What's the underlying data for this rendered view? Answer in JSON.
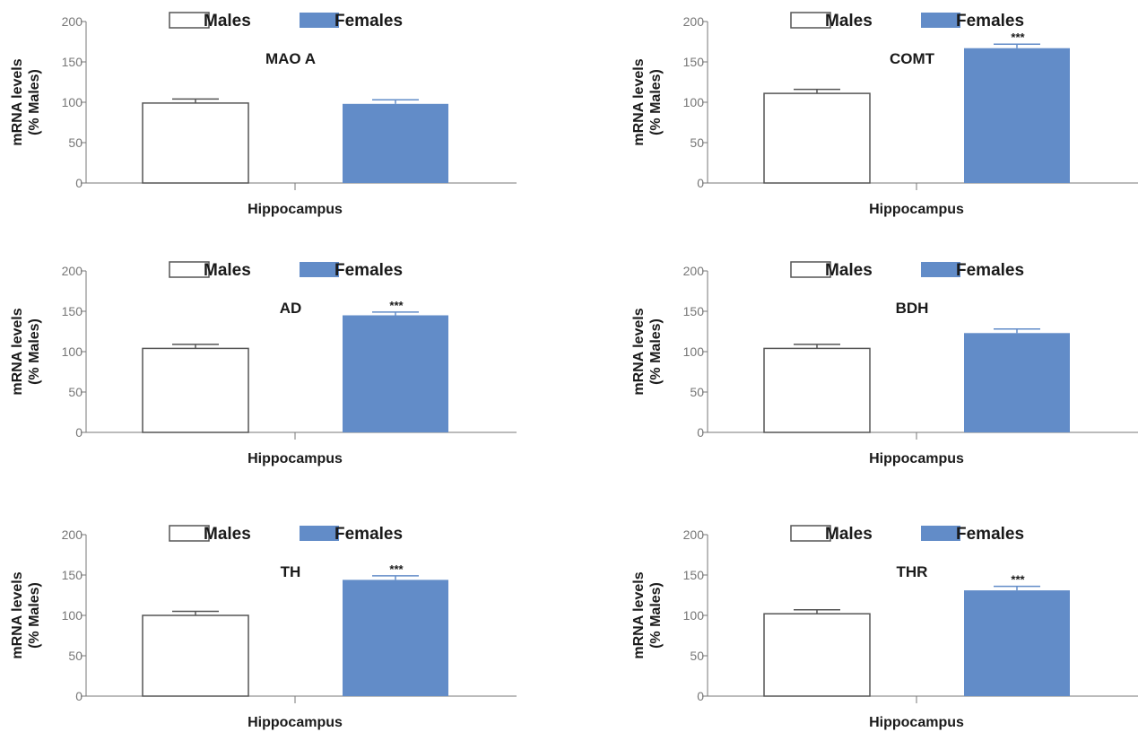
{
  "colors": {
    "males_fill": "#ffffff",
    "males_stroke": "#555555",
    "females_fill": "#628cc8",
    "axis": "#777777",
    "text": "#1a1a1a"
  },
  "chart_data": [
    {
      "type": "bar",
      "title": "MAO A",
      "legend": [
        "Males",
        "Females"
      ],
      "legend_placement": "top",
      "categories": [
        "Hippocampus"
      ],
      "xlabel": "Hippocampus",
      "ylabel": "mRNA levels\n(% Males)",
      "ylim": [
        0,
        200
      ],
      "yticks": [
        0,
        50,
        100,
        150,
        200
      ],
      "grid": false,
      "series": [
        {
          "name": "Males",
          "values": [
            99
          ],
          "error": [
            5
          ],
          "significance": ""
        },
        {
          "name": "Females",
          "values": [
            98
          ],
          "error": [
            5
          ],
          "significance": ""
        }
      ]
    },
    {
      "type": "bar",
      "title": "COMT",
      "legend": [
        "Males",
        "Females"
      ],
      "legend_placement": "top",
      "categories": [
        "Hippocampus"
      ],
      "xlabel": "Hippocampus",
      "ylabel": "mRNA levels\n(% Males)",
      "ylim": [
        0,
        200
      ],
      "yticks": [
        0,
        50,
        100,
        150,
        200
      ],
      "grid": false,
      "series": [
        {
          "name": "Males",
          "values": [
            111
          ],
          "error": [
            5
          ],
          "significance": ""
        },
        {
          "name": "Females",
          "values": [
            167
          ],
          "error": [
            5
          ],
          "significance": "***"
        }
      ]
    },
    {
      "type": "bar",
      "title": "AD",
      "legend": [
        "Males",
        "Females"
      ],
      "legend_placement": "top",
      "categories": [
        "Hippocampus"
      ],
      "xlabel": "Hippocampus",
      "ylabel": "mRNA levels\n(% Males)",
      "ylim": [
        0,
        200
      ],
      "yticks": [
        0,
        50,
        100,
        150,
        200
      ],
      "grid": false,
      "series": [
        {
          "name": "Males",
          "values": [
            104
          ],
          "error": [
            5
          ],
          "significance": ""
        },
        {
          "name": "Females",
          "values": [
            145
          ],
          "error": [
            4
          ],
          "significance": "***"
        }
      ]
    },
    {
      "type": "bar",
      "title": "BDH",
      "legend": [
        "Males",
        "Females"
      ],
      "legend_placement": "top",
      "categories": [
        "Hippocampus"
      ],
      "xlabel": "Hippocampus",
      "ylabel": "mRNA levels\n(% Males)",
      "ylim": [
        0,
        200
      ],
      "yticks": [
        0,
        50,
        100,
        150,
        200
      ],
      "grid": false,
      "series": [
        {
          "name": "Males",
          "values": [
            104
          ],
          "error": [
            5
          ],
          "significance": ""
        },
        {
          "name": "Females",
          "values": [
            123
          ],
          "error": [
            5
          ],
          "significance": ""
        }
      ]
    },
    {
      "type": "bar",
      "title": "TH",
      "legend": [
        "Males",
        "Females"
      ],
      "legend_placement": "top",
      "categories": [
        "Hippocampus"
      ],
      "xlabel": "Hippocampus",
      "ylabel": "mRNA levels\n(% Males)",
      "ylim": [
        0,
        200
      ],
      "yticks": [
        0,
        50,
        100,
        150,
        200
      ],
      "grid": false,
      "series": [
        {
          "name": "Males",
          "values": [
            100
          ],
          "error": [
            5
          ],
          "significance": ""
        },
        {
          "name": "Females",
          "values": [
            144
          ],
          "error": [
            5
          ],
          "significance": "***"
        }
      ]
    },
    {
      "type": "bar",
      "title": "THR",
      "legend": [
        "Males",
        "Females"
      ],
      "legend_placement": "top",
      "categories": [
        "Hippocampus"
      ],
      "xlabel": "Hippocampus",
      "ylabel": "mRNA levels\n(% Males)",
      "ylim": [
        0,
        200
      ],
      "yticks": [
        0,
        50,
        100,
        150,
        200
      ],
      "grid": false,
      "series": [
        {
          "name": "Males",
          "values": [
            102
          ],
          "error": [
            5
          ],
          "significance": ""
        },
        {
          "name": "Females",
          "values": [
            131
          ],
          "error": [
            5
          ],
          "significance": "***"
        }
      ]
    }
  ]
}
